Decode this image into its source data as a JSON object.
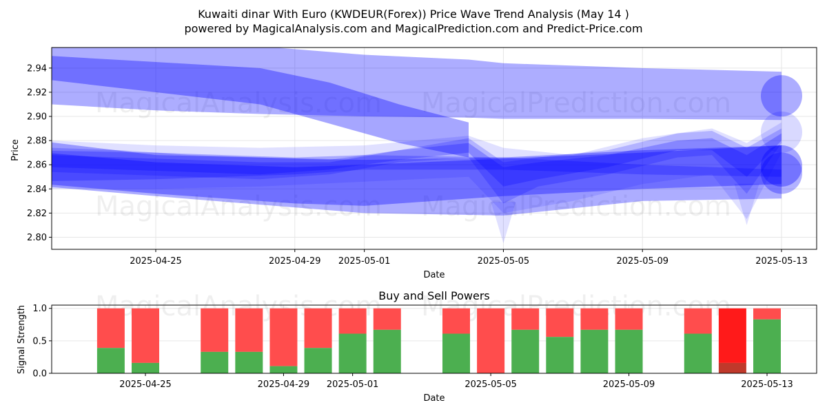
{
  "title_line1": "Kuwaiti dinar With Euro (KWDEUR(Forex)) Price Wave Trend Analysis (May 14 )",
  "title_line2": "powered by MagicalAnalysis.com and MagicalPrediction.com and Predict-Price.com",
  "watermarks": [
    "MagicalAnalysis.com",
    "MagicalPrediction.com"
  ],
  "colors": {
    "band": "#0000ff",
    "buy": "#4caf50",
    "sell": "#ff4d4d",
    "strong_sell": "#ff1a1a",
    "strong_buy_overlay": "#c0392b",
    "grid": "#e6e6e6"
  },
  "chart_data": [
    {
      "type": "area",
      "title": "",
      "xlabel": "Date",
      "ylabel": "Price",
      "grid": true,
      "xlim": [
        "2025-04-21",
        "2025-05-14"
      ],
      "ylim": [
        2.79,
        2.957
      ],
      "x_ticks": [
        "2025-04-25",
        "2025-04-29",
        "2025-05-01",
        "2025-05-05",
        "2025-05-09",
        "2025-05-13"
      ],
      "y_ticks": [
        2.8,
        2.82,
        2.84,
        2.86,
        2.88,
        2.9,
        2.92,
        2.94
      ],
      "series": [
        {
          "x": [
            "2025-04-22",
            "2025-04-25",
            "2025-04-28",
            "2025-05-01",
            "2025-05-04",
            "2025-05-05",
            "2025-05-09",
            "2025-05-13"
          ],
          "upper": [
            2.965,
            2.96,
            2.958,
            2.951,
            2.947,
            2.944,
            2.94,
            2.937
          ],
          "lower": [
            2.91,
            2.905,
            2.902,
            2.9,
            2.899,
            2.898,
            2.898,
            2.897
          ],
          "opacity": 0.32
        },
        {
          "x": [
            "2025-04-22",
            "2025-04-25",
            "2025-04-28",
            "2025-04-30",
            "2025-05-02",
            "2025-05-04"
          ],
          "upper": [
            2.95,
            2.945,
            2.94,
            2.928,
            2.91,
            2.895
          ],
          "lower": [
            2.93,
            2.92,
            2.91,
            2.894,
            2.878,
            2.866
          ],
          "opacity": 0.35
        },
        {
          "x": [
            "2025-04-21",
            "2025-04-25",
            "2025-05-01",
            "2025-05-05",
            "2025-05-09",
            "2025-05-13"
          ],
          "upper": [
            2.882,
            2.868,
            2.864,
            2.866,
            2.872,
            2.876
          ],
          "lower": [
            2.844,
            2.834,
            2.82,
            2.818,
            2.83,
            2.832
          ],
          "opacity": 0.32
        },
        {
          "x": [
            "2025-04-22",
            "2025-04-25",
            "2025-04-28",
            "2025-05-01",
            "2025-05-04",
            "2025-05-05",
            "2025-05-07",
            "2025-05-09",
            "2025-05-11",
            "2025-05-12",
            "2025-05-13"
          ],
          "upper": [
            2.88,
            2.876,
            2.874,
            2.876,
            2.884,
            2.874,
            2.868,
            2.882,
            2.89,
            2.878,
            2.895
          ],
          "lower": [
            2.84,
            2.84,
            2.842,
            2.846,
            2.85,
            2.82,
            2.83,
            2.844,
            2.852,
            2.815,
            2.87
          ],
          "opacity": 0.12
        },
        {
          "x": [
            "2025-04-22",
            "2025-04-24",
            "2025-04-26",
            "2025-04-28",
            "2025-04-30",
            "2025-05-02",
            "2025-05-04",
            "2025-05-05",
            "2025-05-06",
            "2025-05-08",
            "2025-05-10",
            "2025-05-11",
            "2025-05-12",
            "2025-05-13"
          ],
          "upper": [
            2.874,
            2.872,
            2.868,
            2.866,
            2.864,
            2.872,
            2.882,
            2.862,
            2.866,
            2.872,
            2.886,
            2.888,
            2.874,
            2.89
          ],
          "lower": [
            2.854,
            2.852,
            2.85,
            2.848,
            2.852,
            2.862,
            2.866,
            2.828,
            2.842,
            2.852,
            2.866,
            2.868,
            2.836,
            2.878
          ],
          "opacity": 0.2
        },
        {
          "x": [
            "2025-04-22",
            "2025-04-24",
            "2025-04-26",
            "2025-04-28",
            "2025-04-30",
            "2025-05-02",
            "2025-05-04",
            "2025-05-05",
            "2025-05-06",
            "2025-05-08",
            "2025-05-10",
            "2025-05-11",
            "2025-05-12",
            "2025-05-13"
          ],
          "upper": [
            2.868,
            2.866,
            2.864,
            2.862,
            2.862,
            2.872,
            2.878,
            2.858,
            2.862,
            2.868,
            2.88,
            2.882,
            2.868,
            2.886
          ],
          "lower": [
            2.858,
            2.856,
            2.854,
            2.852,
            2.856,
            2.864,
            2.87,
            2.842,
            2.848,
            2.858,
            2.872,
            2.872,
            2.85,
            2.88
          ],
          "opacity": 0.25
        },
        {
          "x": [
            "2025-04-21",
            "2025-04-25",
            "2025-04-29",
            "2025-05-01",
            "2025-05-05",
            "2025-05-09",
            "2025-05-13"
          ],
          "upper": [
            2.872,
            2.87,
            2.866,
            2.868,
            2.866,
            2.86,
            2.856
          ],
          "lower": [
            2.846,
            2.848,
            2.852,
            2.856,
            2.856,
            2.852,
            2.85
          ],
          "opacity": 0.25
        },
        {
          "x": [
            "2025-04-21",
            "2025-04-25",
            "2025-04-29",
            "2025-05-01",
            "2025-05-05",
            "2025-05-09",
            "2025-05-13"
          ],
          "upper": [
            2.872,
            2.862,
            2.858,
            2.86,
            2.865,
            2.87,
            2.876
          ],
          "lower": [
            2.846,
            2.836,
            2.828,
            2.826,
            2.834,
            2.84,
            2.844
          ],
          "opacity": 0.35
        }
      ],
      "end_circles": [
        {
          "x": "2025-05-13",
          "y": 2.917,
          "opacity": 0.32
        },
        {
          "x": "2025-05-13",
          "y": 2.859,
          "opacity": 0.35
        },
        {
          "x": "2025-05-13",
          "y": 2.853,
          "opacity": 0.3
        },
        {
          "x": "2025-05-13",
          "y": 2.887,
          "opacity": 0.15
        }
      ],
      "extra_dips": [
        {
          "x": "2025-05-05",
          "y": 2.795
        },
        {
          "x": "2025-05-12",
          "y": 2.81
        }
      ]
    },
    {
      "type": "bar",
      "title": "Buy and Sell Powers",
      "xlabel": "Date",
      "ylabel": "Signal Strength",
      "grid": true,
      "xlim": [
        "2025-04-21",
        "2025-05-14"
      ],
      "ylim": [
        0,
        1.05
      ],
      "x_ticks": [
        "2025-04-25",
        "2025-04-29",
        "2025-05-01",
        "2025-05-05",
        "2025-05-09",
        "2025-05-13"
      ],
      "y_ticks": [
        0.0,
        0.5,
        1.0
      ],
      "categories": [
        "2025-04-24",
        "2025-04-25",
        "2025-04-27",
        "2025-04-28",
        "2025-04-29",
        "2025-04-30",
        "2025-05-01",
        "2025-05-02",
        "2025-05-04",
        "2025-05-05",
        "2025-05-06",
        "2025-05-07",
        "2025-05-08",
        "2025-05-09",
        "2025-05-11",
        "2025-05-12",
        "2025-05-13"
      ],
      "series": [
        {
          "name": "Buy",
          "values": [
            0.39,
            0.16,
            0.33,
            0.33,
            0.11,
            0.39,
            0.61,
            0.67,
            0.61,
            0.0,
            0.67,
            0.56,
            0.67,
            0.67,
            0.61,
            0.16,
            0.83
          ]
        },
        {
          "name": "Sell",
          "values": [
            0.61,
            0.84,
            0.67,
            0.67,
            0.89,
            0.61,
            0.39,
            0.33,
            0.39,
            1.0,
            0.33,
            0.44,
            0.33,
            0.33,
            0.39,
            0.84,
            0.17
          ]
        }
      ],
      "strong_index": 15
    }
  ]
}
